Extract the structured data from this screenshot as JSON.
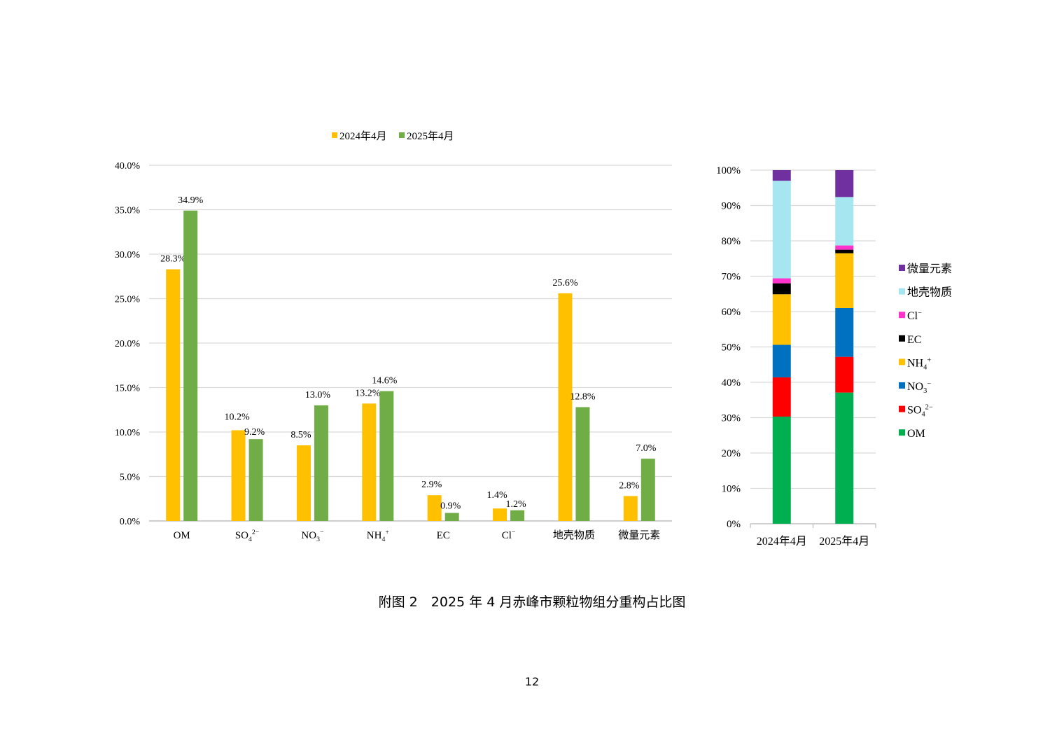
{
  "chart_data": [
    {
      "type": "bar",
      "categories": [
        "OM",
        "SO4",
        "NO3",
        "NH4",
        "EC",
        "Cl",
        "地壳物质",
        "微量元素"
      ],
      "category_labels": [
        {
          "base": "OM"
        },
        {
          "base": "SO",
          "sub": "4",
          "sup": "2−"
        },
        {
          "base": "NO",
          "sub": "3",
          "sup": "−"
        },
        {
          "base": "NH",
          "sub": "4",
          "sup": "+"
        },
        {
          "base": "EC"
        },
        {
          "base": "Cl",
          "sup": "−"
        },
        {
          "base": "地壳物质"
        },
        {
          "base": "微量元素"
        }
      ],
      "series": [
        {
          "name": "2024年4月",
          "color": "#FFC000",
          "values": [
            28.3,
            10.2,
            8.5,
            13.2,
            2.9,
            1.4,
            25.6,
            2.8
          ],
          "labels": [
            "28.3%",
            "10.2%",
            "8.5%",
            "13.2%",
            "2.9%",
            "1.4%",
            "25.6%",
            "2.8%"
          ]
        },
        {
          "name": "2025年4月",
          "color": "#70AD47",
          "values": [
            34.9,
            9.2,
            13.0,
            14.6,
            0.9,
            1.2,
            12.8,
            7.0
          ],
          "labels": [
            "34.9%",
            "9.2%",
            "13.0%",
            "14.6%",
            "0.9%",
            "1.2%",
            "12.8%",
            "7.0%"
          ]
        }
      ],
      "ylim": [
        0,
        40
      ],
      "yticks": [
        "0.0%",
        "5.0%",
        "10.0%",
        "15.0%",
        "20.0%",
        "25.0%",
        "30.0%",
        "35.0%",
        "40.0%"
      ],
      "grid": true,
      "legend": "top"
    },
    {
      "type": "bar",
      "stacked": true,
      "percent": true,
      "categories": [
        "2024年4月",
        "2025年4月"
      ],
      "series": [
        {
          "name": "OM",
          "label": {
            "base": "OM"
          },
          "color": "#00B050",
          "values": [
            30.3,
            37.1
          ]
        },
        {
          "name": "SO4",
          "label": {
            "base": "SO",
            "sub": "4",
            "sup": "2−"
          },
          "color": "#FF0000",
          "values": [
            11.1,
            10.1
          ]
        },
        {
          "name": "NO3",
          "label": {
            "base": "NO",
            "sub": "3",
            "sup": "−"
          },
          "color": "#0070C0",
          "values": [
            9.2,
            13.8
          ]
        },
        {
          "name": "NH4",
          "label": {
            "base": "NH",
            "sub": "4",
            "sup": "+"
          },
          "color": "#FFC000",
          "values": [
            14.3,
            15.5
          ]
        },
        {
          "name": "EC",
          "label": {
            "base": "EC"
          },
          "color": "#000000",
          "values": [
            3.1,
            1.0
          ]
        },
        {
          "name": "Cl",
          "label": {
            "base": "Cl",
            "sup": "−"
          },
          "color": "#FF33CC",
          "values": [
            1.4,
            1.2
          ]
        },
        {
          "name": "地壳物质",
          "label": {
            "base": "地壳物质"
          },
          "color": "#A6E6F0",
          "values": [
            27.6,
            13.7
          ]
        },
        {
          "name": "微量元素",
          "label": {
            "base": "微量元素"
          },
          "color": "#7030A0",
          "values": [
            3.0,
            7.6
          ]
        }
      ],
      "ylim": [
        0,
        100
      ],
      "yticks": [
        "0%",
        "10%",
        "20%",
        "30%",
        "40%",
        "50%",
        "60%",
        "70%",
        "80%",
        "90%",
        "100%"
      ],
      "grid": true,
      "legend": "right"
    }
  ],
  "caption": "附图 2　2025 年 4 月赤峰市颗粒物组分重构占比图",
  "page_number": "12"
}
